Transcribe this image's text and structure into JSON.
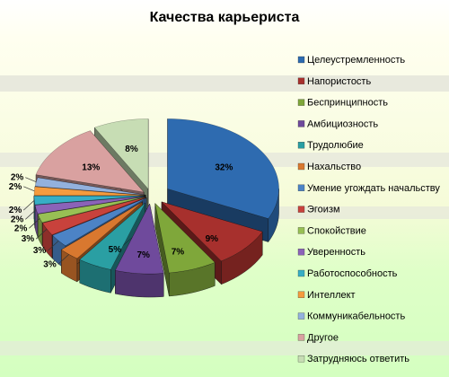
{
  "chart_data": {
    "type": "pie",
    "style": "3d-exploded",
    "title": "Качества карьериста",
    "legend_position": "right",
    "slices": [
      {
        "name": "Целеустремленность",
        "value": 32,
        "label": "32%",
        "color": "#2E6BB0"
      },
      {
        "name": "Напористость",
        "value": 9,
        "label": "9%",
        "color": "#A7302D"
      },
      {
        "name": "Беспринципность",
        "value": 7,
        "label": "7%",
        "color": "#7FA73A"
      },
      {
        "name": "Амбициозность",
        "value": 7,
        "label": "7%",
        "color": "#6F4A9C"
      },
      {
        "name": "Трудолюбие",
        "value": 5,
        "label": "5%",
        "color": "#2A9FA3"
      },
      {
        "name": "Нахальство",
        "value": 3,
        "label": "3%",
        "color": "#D9782F"
      },
      {
        "name": "Умение угождать начальству",
        "value": 3,
        "label": "3%",
        "color": "#4C83C6"
      },
      {
        "name": "Эгоизм",
        "value": 3,
        "label": "3%",
        "color": "#C8423C"
      },
      {
        "name": "Спокойствие",
        "value": 2,
        "label": "2%",
        "color": "#98C054"
      },
      {
        "name": "Уверенность",
        "value": 2,
        "label": "2%",
        "color": "#8B63B8"
      },
      {
        "name": "Работоспособность",
        "value": 2,
        "label": "2%",
        "color": "#37AEC5"
      },
      {
        "name": "Интеллект",
        "value": 2,
        "label": "2%",
        "color": "#F59B3E"
      },
      {
        "name": "Коммуникабельность",
        "value": 2,
        "label": "2%",
        "color": "#93B1DD"
      },
      {
        "name": "Другое",
        "value": 13,
        "label": "13%",
        "color": "#D9A1A0"
      },
      {
        "name": "Затрудняюсь ответить",
        "value": 8,
        "label": "8%",
        "color": "#C7DDB4"
      }
    ]
  }
}
